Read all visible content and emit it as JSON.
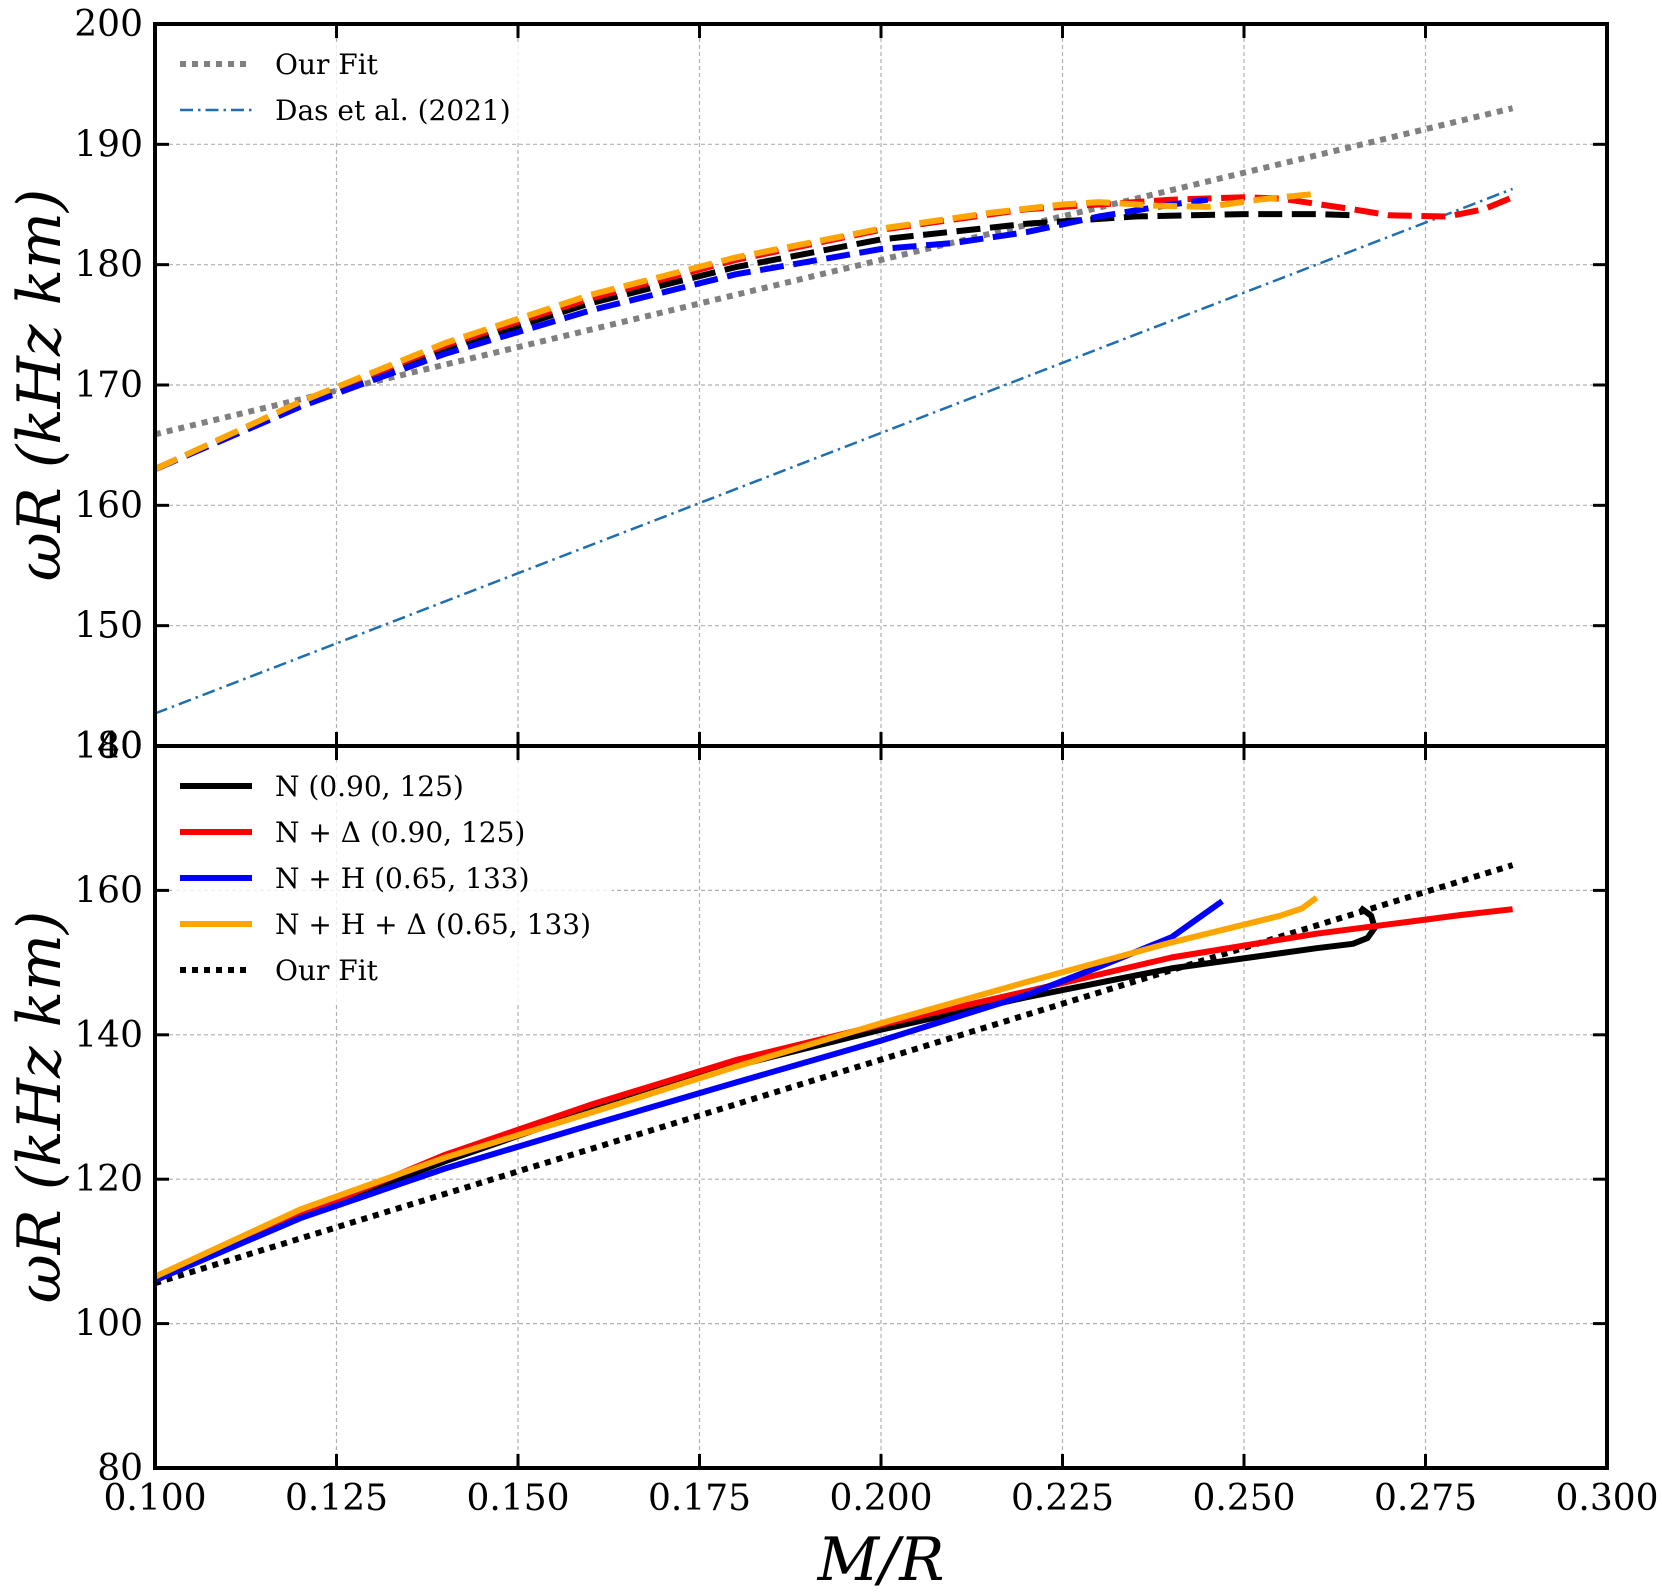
{
  "chart_data": [
    {
      "type": "line",
      "panel": "top",
      "ylabel": "ωR (kHz km)",
      "xlabel": "",
      "xlim": [
        0.1,
        0.3
      ],
      "ylim": [
        140,
        200
      ],
      "xticks": [
        "0.100",
        "0.125",
        "0.150",
        "0.175",
        "0.200",
        "0.225",
        "0.250",
        "0.275",
        "0.300"
      ],
      "yticks": [
        "140",
        "150",
        "160",
        "170",
        "180",
        "190",
        "200"
      ],
      "grid": true,
      "legend_position": "top-left",
      "legend": [
        {
          "label": "Our Fit",
          "color": "#808080",
          "style": "dotted"
        },
        {
          "label": "Das et al. (2021)",
          "color": "#1f6fb0",
          "style": "dashdot"
        }
      ],
      "series": [
        {
          "name": "Our Fit",
          "color": "#808080",
          "style": "dotted",
          "width": 6,
          "x": [
            0.1,
            0.287
          ],
          "y": [
            165.9,
            193.0
          ]
        },
        {
          "name": "Das et al. (2021)",
          "color": "#1f6fb0",
          "style": "dashdot",
          "width": 2.5,
          "x": [
            0.1,
            0.287
          ],
          "y": [
            142.7,
            186.3
          ]
        },
        {
          "name": "N (0.90, 125)",
          "color": "#000000",
          "style": "dashed",
          "width": 6,
          "x": [
            0.1,
            0.12,
            0.14,
            0.16,
            0.18,
            0.2,
            0.22,
            0.235,
            0.25,
            0.26,
            0.265
          ],
          "y": [
            163.0,
            168.3,
            173.0,
            176.8,
            179.8,
            182.1,
            183.4,
            184.0,
            184.2,
            184.2,
            184.1
          ]
        },
        {
          "name": "N + Δ (0.90, 125)",
          "color": "#ff0000",
          "style": "dashed",
          "width": 6,
          "x": [
            0.1,
            0.12,
            0.14,
            0.16,
            0.18,
            0.2,
            0.22,
            0.24,
            0.25,
            0.255,
            0.265,
            0.27,
            0.278,
            0.283,
            0.287
          ],
          "y": [
            163.0,
            168.5,
            173.3,
            177.2,
            180.4,
            182.9,
            184.6,
            185.4,
            185.6,
            185.5,
            184.6,
            184.1,
            184.0,
            184.6,
            185.6
          ]
        },
        {
          "name": "N + H (0.65, 133)",
          "color": "#0000ff",
          "style": "dashed",
          "width": 6,
          "x": [
            0.1,
            0.12,
            0.14,
            0.16,
            0.18,
            0.2,
            0.21,
            0.22,
            0.23,
            0.24,
            0.245
          ],
          "y": [
            163.0,
            168.2,
            172.6,
            176.2,
            179.2,
            181.3,
            181.8,
            182.7,
            184.0,
            185.0,
            185.4
          ]
        },
        {
          "name": "N + H + Δ (0.65, 133)",
          "color": "#ffa500",
          "style": "dashed",
          "width": 6,
          "x": [
            0.1,
            0.12,
            0.14,
            0.16,
            0.18,
            0.2,
            0.215,
            0.225,
            0.23,
            0.238,
            0.245,
            0.252,
            0.26
          ],
          "y": [
            163.0,
            168.6,
            173.5,
            177.5,
            180.6,
            183.0,
            184.3,
            185.0,
            185.2,
            184.9,
            184.8,
            185.4,
            185.9
          ]
        }
      ]
    },
    {
      "type": "line",
      "panel": "bottom",
      "ylabel": "ωR (kHz km)",
      "xlabel": "M/R",
      "xlim": [
        0.1,
        0.3
      ],
      "ylim": [
        80,
        180
      ],
      "xticks": [
        "0.100",
        "0.125",
        "0.150",
        "0.175",
        "0.200",
        "0.225",
        "0.250",
        "0.275",
        "0.300"
      ],
      "yticks": [
        "80",
        "100",
        "120",
        "140",
        "160",
        "180"
      ],
      "grid": true,
      "legend_position": "top-left",
      "legend": [
        {
          "label": "N (0.90, 125)",
          "color": "#000000",
          "style": "solid"
        },
        {
          "label": "N + Δ (0.90, 125)",
          "color": "#ff0000",
          "style": "solid"
        },
        {
          "label": "N + H (0.65, 133)",
          "color": "#0000ff",
          "style": "solid"
        },
        {
          "label": "N + H + Δ (0.65, 133)",
          "color": "#ffa500",
          "style": "solid"
        },
        {
          "label": "Our Fit",
          "color": "#000000",
          "style": "dotted"
        }
      ],
      "series": [
        {
          "name": "Our Fit",
          "color": "#000000",
          "style": "dotted",
          "width": 6,
          "x": [
            0.1,
            0.287
          ],
          "y": [
            105.6,
            163.5
          ]
        },
        {
          "name": "N (0.90, 125)",
          "color": "#000000",
          "style": "solid",
          "width": 6,
          "x": [
            0.1,
            0.12,
            0.14,
            0.16,
            0.18,
            0.2,
            0.22,
            0.24,
            0.26,
            0.265,
            0.267,
            0.268,
            0.2675,
            0.266
          ],
          "y": [
            106.0,
            114.8,
            122.5,
            129.5,
            135.7,
            140.7,
            145.2,
            149.2,
            152.0,
            152.6,
            153.4,
            154.8,
            156.5,
            157.6
          ]
        },
        {
          "name": "N + Δ (0.90, 125)",
          "color": "#ff0000",
          "style": "solid",
          "width": 6,
          "x": [
            0.1,
            0.12,
            0.14,
            0.16,
            0.18,
            0.2,
            0.22,
            0.24,
            0.26,
            0.28,
            0.287
          ],
          "y": [
            106.0,
            115.0,
            123.4,
            130.3,
            136.5,
            141.4,
            146.0,
            150.7,
            154.0,
            156.6,
            157.4
          ]
        },
        {
          "name": "N + H (0.65, 133)",
          "color": "#0000ff",
          "style": "solid",
          "width": 6,
          "x": [
            0.1,
            0.12,
            0.14,
            0.16,
            0.18,
            0.2,
            0.22,
            0.23,
            0.24,
            0.247
          ],
          "y": [
            106.0,
            114.6,
            121.5,
            127.5,
            133.4,
            139.2,
            145.5,
            149.4,
            153.5,
            158.5
          ]
        },
        {
          "name": "N + H + Δ (0.65, 133)",
          "color": "#ffa500",
          "style": "solid",
          "width": 6,
          "x": [
            0.1,
            0.12,
            0.14,
            0.16,
            0.18,
            0.2,
            0.22,
            0.24,
            0.255,
            0.258,
            0.26
          ],
          "y": [
            106.5,
            115.8,
            123.0,
            129.2,
            135.6,
            141.6,
            147.3,
            152.8,
            156.5,
            157.5,
            159.0
          ]
        }
      ]
    }
  ]
}
